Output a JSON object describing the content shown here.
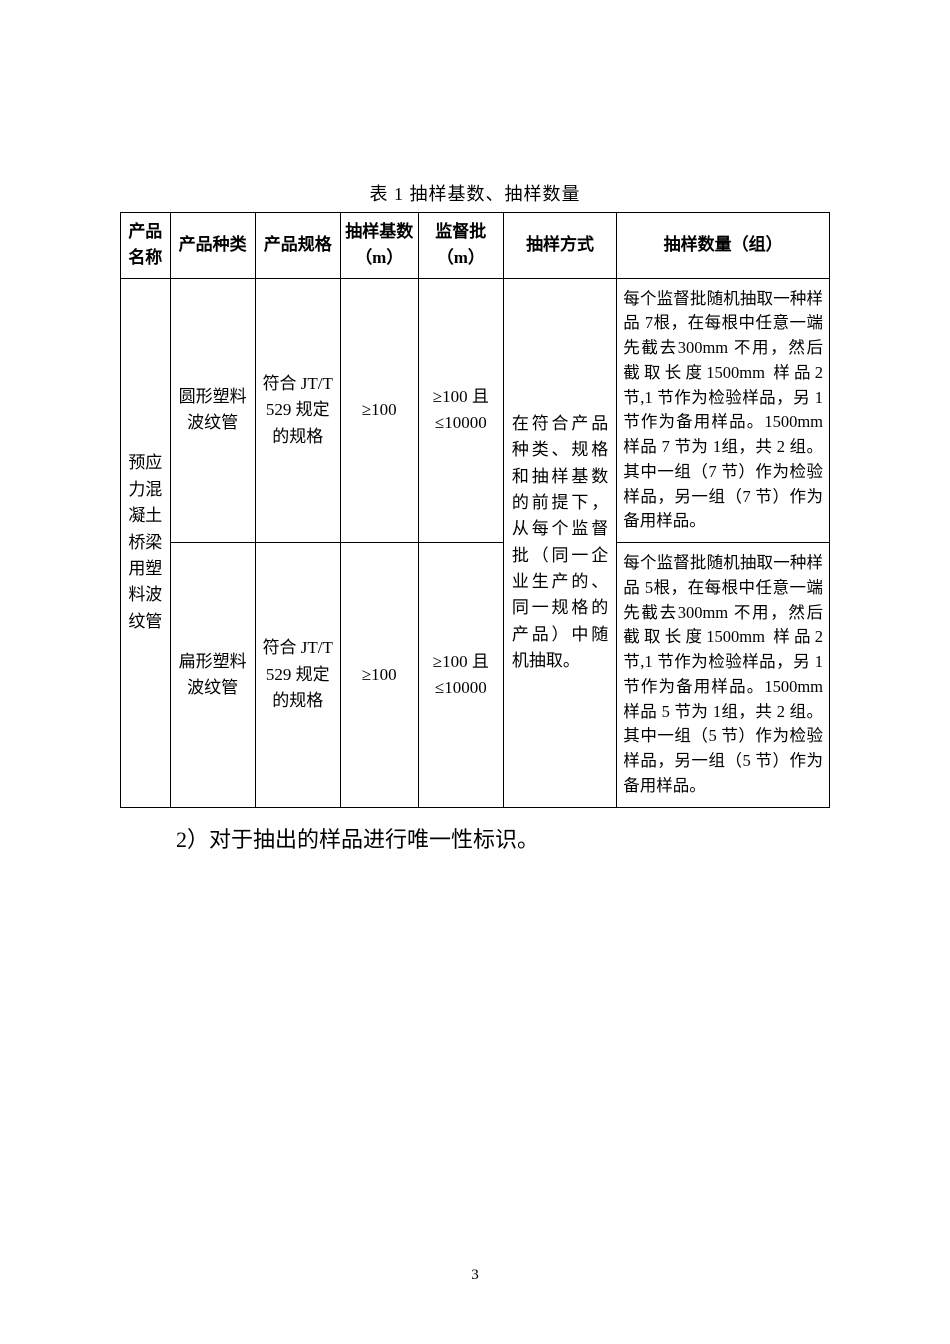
{
  "title": "表 1  抽样基数、抽样数量",
  "headers": {
    "c1": "产品名称",
    "c2": "产品种类",
    "c3": "产品规格",
    "c4": "抽样基数（m）",
    "c5": "监督批（m）",
    "c6": "抽样方式",
    "c7": "抽样数量（组）"
  },
  "body": {
    "product_name": "预应力混凝土桥梁用塑料波纹管",
    "row1": {
      "kind": "圆形塑料波纹管",
      "spec": "符合 JT/T 529 规定的规格",
      "base": "≥100",
      "batch": "≥100 且≤10000",
      "qty": "每个监督批随机抽取一种样品 7根，在每根中任意一端先截去300mm 不用，然后截取长度1500mm 样品2 节,1 节作为检验样品，另 1 节作为备用样品。1500mm样品 7 节为 1组，共 2 组。其中一组（7 节）作为检验样品，另一组（7 节）作为备用样品。"
    },
    "method": "在符合产品种类、规格和抽样基数的前提下，从每个监督批（同一企业生产的、同一规格的产品）中随机抽取。",
    "row2": {
      "kind": "扁形塑料波纹管",
      "spec": "符合 JT/T 529 规定的规格",
      "base": "≥100",
      "batch": "≥100 且≤10000",
      "qty": "每个监督批随机抽取一种样品 5根，在每根中任意一端先截去300mm 不用，然后截取长度1500mm 样品2 节,1 节作为检验样品，另 1 节作为备用样品。1500mm样品 5 节为 1组，共 2 组。其中一组（5 节）作为检验样品，另一组（5 节）作为备用样品。"
    }
  },
  "footnote": "2）对于抽出的样品进行唯一性标识。",
  "page_number": "3"
}
